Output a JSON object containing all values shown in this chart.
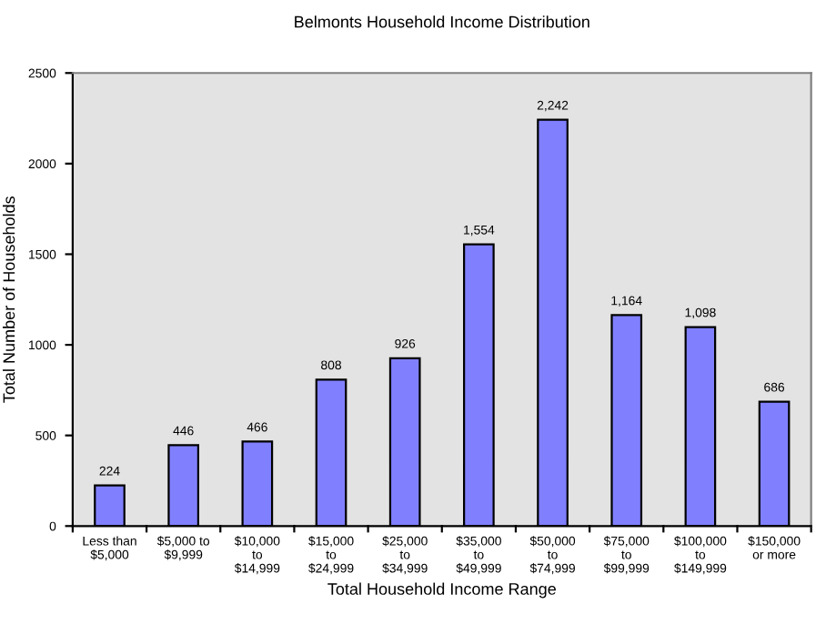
{
  "chart_data": {
    "type": "bar",
    "title": "Belmonts Household Income Distribution",
    "xlabel": "Total Household Income Range",
    "ylabel": "Total Number of Households",
    "categories": [
      "Less than\n$5,000",
      "$5,000 to\n$9,999",
      "$10,000\nto\n$14,999",
      "$15,000\nto\n$24,999",
      "$25,000\nto\n$34,999",
      "$35,000\nto\n$49,999",
      "$50,000\nto\n$74,999",
      "$75,000\nto\n$99,999",
      "$100,000\nto\n$149,999",
      "$150,000\nor more"
    ],
    "values": [
      224,
      446,
      466,
      808,
      926,
      1554,
      2242,
      1164,
      1098,
      686
    ],
    "value_labels": [
      "224",
      "446",
      "466",
      "808",
      "926",
      "1,554",
      "2,242",
      "1,164",
      "1,098",
      "686"
    ],
    "color": "#8080ff",
    "ylim": [
      0,
      2500
    ],
    "yticks": [
      0,
      500,
      1000,
      1500,
      2000,
      2500
    ],
    "grid": false,
    "legend": false
  }
}
